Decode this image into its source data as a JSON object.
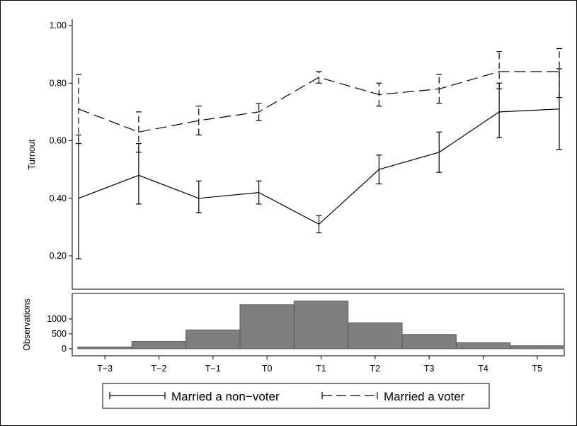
{
  "chart_data": [
    {
      "type": "line",
      "ylabel": "Turnout",
      "xlim": [
        -3,
        5
      ],
      "ylim": [
        0.15,
        1.0
      ],
      "yticks": [
        {
          "value": 0.2,
          "label": "0.20"
        },
        {
          "value": 0.4,
          "label": "0.40"
        },
        {
          "value": 0.6,
          "label": "0.60"
        },
        {
          "value": 0.8,
          "label": "0.80"
        },
        {
          "value": 1.0,
          "label": "1.00"
        }
      ],
      "grid": false,
      "error_bars": true,
      "series": [
        {
          "name": "Married a non−voter",
          "line_style": "solid",
          "x": [
            -3,
            -2,
            -1,
            0,
            1,
            2,
            3,
            4,
            5
          ],
          "values": [
            0.4,
            0.48,
            0.4,
            0.42,
            0.31,
            0.5,
            0.56,
            0.7,
            0.71
          ],
          "lower": [
            0.19,
            0.38,
            0.35,
            0.38,
            0.28,
            0.45,
            0.49,
            0.61,
            0.57
          ],
          "upper": [
            0.62,
            0.59,
            0.46,
            0.46,
            0.34,
            0.55,
            0.63,
            0.8,
            0.85
          ]
        },
        {
          "name": "Married a voter",
          "line_style": "dashed",
          "x": [
            -3,
            -2,
            -1,
            0,
            1,
            2,
            3,
            4,
            5
          ],
          "values": [
            0.71,
            0.63,
            0.67,
            0.7,
            0.82,
            0.76,
            0.78,
            0.84,
            0.84
          ],
          "lower": [
            0.59,
            0.56,
            0.62,
            0.67,
            0.8,
            0.72,
            0.73,
            0.78,
            0.75
          ],
          "upper": [
            0.83,
            0.7,
            0.72,
            0.73,
            0.84,
            0.8,
            0.83,
            0.91,
            0.92
          ]
        }
      ],
      "legend": {
        "position": "bottom",
        "entries": [
          "Married a non−voter",
          "Married a voter"
        ]
      }
    },
    {
      "type": "bar",
      "ylabel": "Observations",
      "categories": [
        "T−3",
        "T−2",
        "T−1",
        "T0",
        "T1",
        "T2",
        "T3",
        "T4",
        "T5"
      ],
      "values": [
        60,
        250,
        630,
        1480,
        1600,
        870,
        480,
        200,
        100
      ],
      "ylim": [
        -100,
        1900
      ],
      "yticks": [
        {
          "value": 0,
          "label": "0"
        },
        {
          "value": 500,
          "label": "500"
        },
        {
          "value": 1000,
          "label": "1000"
        }
      ],
      "bar_color": "#7f7f7f",
      "grid": false
    }
  ]
}
